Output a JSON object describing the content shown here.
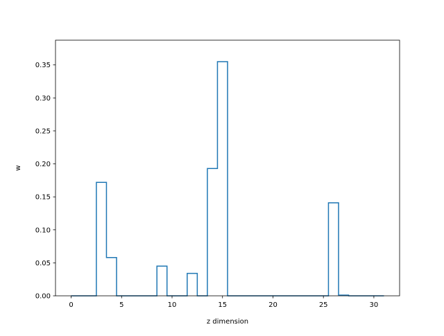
{
  "chart_data": {
    "type": "step",
    "title": "",
    "xlabel": "z dimension",
    "ylabel": "w",
    "xlim": [
      -1.55,
      32.55
    ],
    "ylim": [
      0,
      0.3875
    ],
    "xticks": [
      0,
      5,
      10,
      15,
      20,
      25,
      30
    ],
    "yticks": [
      0.0,
      0.05,
      0.1,
      0.15,
      0.2,
      0.25,
      0.3,
      0.35
    ],
    "xtick_labels": [
      "0",
      "5",
      "10",
      "15",
      "20",
      "25",
      "30"
    ],
    "ytick_labels": [
      "0.00",
      "0.05",
      "0.10",
      "0.15",
      "0.20",
      "0.25",
      "0.30",
      "0.35"
    ],
    "grid": false,
    "line_color": "#1f77b4",
    "x": [
      0,
      1,
      2,
      3,
      4,
      5,
      6,
      7,
      8,
      9,
      10,
      11,
      12,
      13,
      14,
      15,
      16,
      17,
      18,
      19,
      20,
      21,
      22,
      23,
      24,
      25,
      26,
      27,
      28,
      29,
      30,
      31
    ],
    "values": [
      0,
      0,
      0,
      0.172,
      0.058,
      0,
      0,
      0,
      0,
      0.045,
      0,
      0,
      0.034,
      0,
      0.193,
      0.355,
      0,
      0,
      0,
      0,
      0,
      0,
      0,
      0,
      0,
      0,
      0.141,
      0.001,
      0,
      0,
      0,
      0
    ]
  }
}
